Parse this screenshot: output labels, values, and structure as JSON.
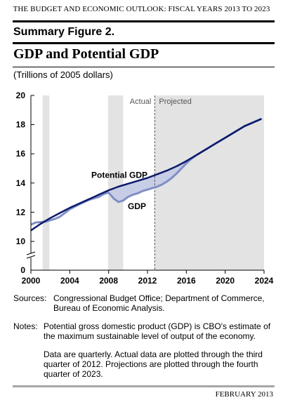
{
  "header": {
    "running_head": "THE BUDGET AND ECONOMIC OUTLOOK: FISCAL YEARS 2013 TO 2023"
  },
  "figure": {
    "label": "Summary Figure 2.",
    "title": "GDP and Potential GDP",
    "units": "(Trillions of 2005 dollars)"
  },
  "colors": {
    "potential_gdp": "#0c1a6b",
    "gdp": "#7f8fc6",
    "gap_fill": "#c8cde6",
    "recession_shading": "#e3e3e3",
    "projection_line": "#555555"
  },
  "chart_data": {
    "type": "line",
    "title": "GDP and Potential GDP",
    "ylabel": "(Trillions of 2005 dollars)",
    "xlabel": "",
    "xlim": [
      2000,
      2024
    ],
    "ylim": [
      0,
      20
    ],
    "axis_break": true,
    "xticks": [
      2000,
      2004,
      2008,
      2012,
      2016,
      2020,
      2024
    ],
    "yticks": [
      0,
      10,
      12,
      14,
      16,
      18,
      20
    ],
    "grid": false,
    "period_labels": {
      "actual": "Actual",
      "projected": "Projected"
    },
    "projection_start": 2012.75,
    "shaded_periods": [
      [
        2001.2,
        2001.9
      ],
      [
        2007.95,
        2009.5
      ]
    ],
    "series": [
      {
        "name": "Potential GDP",
        "x": [
          2000,
          2001,
          2002,
          2003,
          2004,
          2005,
          2006,
          2007,
          2008,
          2009,
          2010,
          2011,
          2012,
          2013,
          2014,
          2015,
          2016,
          2017,
          2018,
          2019,
          2020,
          2021,
          2022,
          2023.75
        ],
        "values": [
          10.75,
          11.2,
          11.6,
          11.95,
          12.3,
          12.6,
          12.9,
          13.2,
          13.5,
          13.75,
          13.95,
          14.15,
          14.35,
          14.6,
          14.85,
          15.15,
          15.5,
          15.9,
          16.3,
          16.7,
          17.1,
          17.5,
          17.9,
          18.4
        ]
      },
      {
        "name": "GDP",
        "x": [
          2000,
          2000.5,
          2001,
          2001.5,
          2002,
          2002.5,
          2003,
          2003.5,
          2004,
          2004.5,
          2005,
          2005.5,
          2006,
          2006.5,
          2007,
          2007.5,
          2008,
          2008.5,
          2009,
          2009.5,
          2010,
          2010.5,
          2011,
          2011.5,
          2012,
          2012.5,
          2013,
          2013.5,
          2014,
          2014.5,
          2015,
          2015.5,
          2016,
          2016.5,
          2017,
          2018,
          2019,
          2020,
          2021,
          2022,
          2023.75
        ],
        "values": [
          11.15,
          11.3,
          11.32,
          11.35,
          11.45,
          11.55,
          11.7,
          11.95,
          12.2,
          12.38,
          12.55,
          12.7,
          12.85,
          12.95,
          13.05,
          13.25,
          13.35,
          12.95,
          12.7,
          12.8,
          13.05,
          13.2,
          13.3,
          13.45,
          13.55,
          13.65,
          13.75,
          13.9,
          14.1,
          14.35,
          14.65,
          15.0,
          15.35,
          15.65,
          15.9,
          16.3,
          16.7,
          17.1,
          17.5,
          17.9,
          18.4
        ]
      }
    ]
  },
  "notes": {
    "sources_label": "Sources:",
    "sources_text": "Congressional Budget Office; Department of Commerce, Bureau of Economic Analysis.",
    "notes_label": "Notes:",
    "notes_text_1": "Potential gross domestic product (GDP) is CBO's estimate of the maximum sustainable level of output of the economy.",
    "notes_text_2": "Data are quarterly. Actual data are plotted through the third quarter of 2012. Projections are plotted through the fourth quarter of 2023."
  },
  "footer": {
    "date": "FEBRUARY 2013"
  }
}
